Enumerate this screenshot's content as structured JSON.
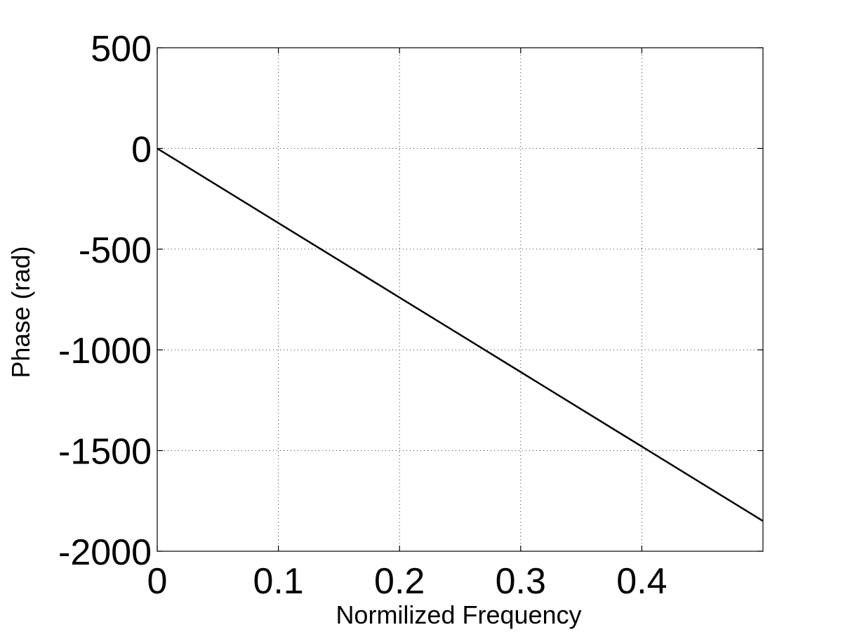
{
  "chart_data": {
    "type": "line",
    "title": "",
    "xlabel": "Normilized Frequency",
    "ylabel": "Phase (rad)",
    "xlim": [
      0,
      0.5
    ],
    "ylim": [
      -2000,
      500
    ],
    "x_ticks": [
      0,
      0.1,
      0.2,
      0.3,
      0.4
    ],
    "x_tick_labels": [
      "0",
      "0.1",
      "0.2",
      "0.3",
      "0.4"
    ],
    "y_ticks": [
      500,
      0,
      -500,
      -1000,
      -1500,
      -2000
    ],
    "y_tick_labels": [
      "500",
      "0",
      "-500",
      "-1000",
      "-1500",
      "-2000"
    ],
    "grid": true,
    "line_color": "#000000",
    "series": [
      {
        "x": [
          0,
          0.1,
          0.2,
          0.3,
          0.4,
          0.5
        ],
        "y": [
          0,
          -370,
          -740,
          -1110,
          -1480,
          -1850
        ]
      }
    ]
  }
}
